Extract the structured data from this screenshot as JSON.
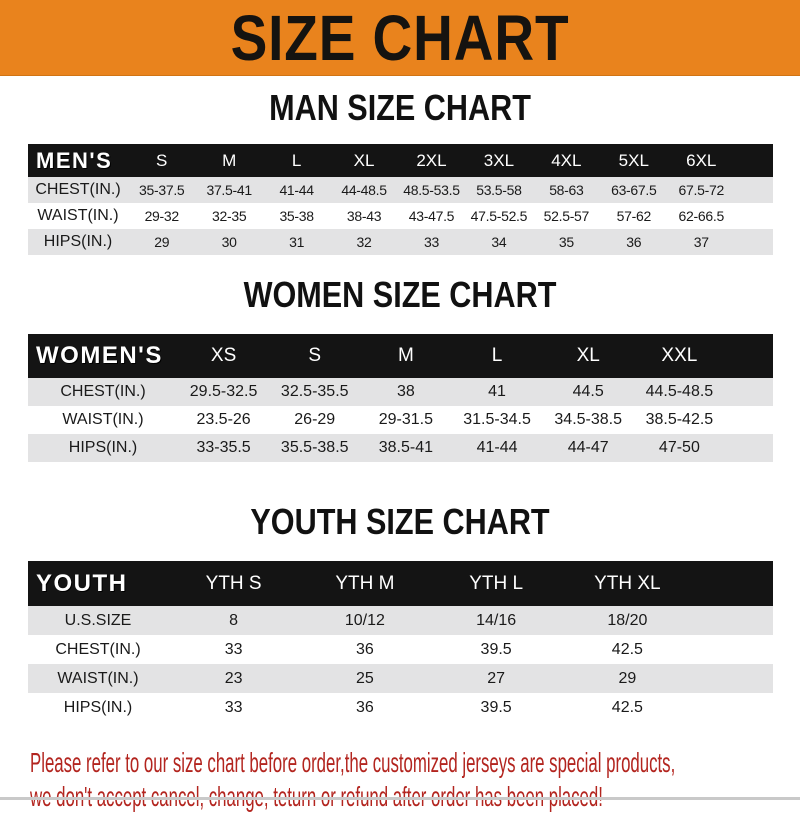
{
  "banner": {
    "title": "SIZE CHART"
  },
  "sections": [
    {
      "heading": "MAN SIZE CHART",
      "header_label": "MEN'S",
      "columns": [
        "S",
        "M",
        "L",
        "XL",
        "2XL",
        "3XL",
        "4XL",
        "5XL",
        "6XL"
      ],
      "rows": [
        {
          "label": "CHEST(IN.)",
          "values": [
            "35-37.5",
            "37.5-41",
            "41-44",
            "44-48.5",
            "48.5-53.5",
            "53.5-58",
            "58-63",
            "63-67.5",
            "67.5-72"
          ]
        },
        {
          "label": "WAIST(IN.)",
          "values": [
            "29-32",
            "32-35",
            "35-38",
            "38-43",
            "43-47.5",
            "47.5-52.5",
            "52.5-57",
            "57-62",
            "62-66.5"
          ]
        },
        {
          "label": "HIPS(IN.)",
          "values": [
            "29",
            "30",
            "31",
            "32",
            "33",
            "34",
            "35",
            "36",
            "37"
          ]
        }
      ]
    },
    {
      "heading": "WOMEN SIZE CHART",
      "header_label": "WOMEN'S",
      "columns": [
        "XS",
        "S",
        "M",
        "L",
        "XL",
        "XXL"
      ],
      "rows": [
        {
          "label": "CHEST(IN.)",
          "values": [
            "29.5-32.5",
            "32.5-35.5",
            "38",
            "41",
            "44.5",
            "44.5-48.5"
          ]
        },
        {
          "label": "WAIST(IN.)",
          "values": [
            "23.5-26",
            "26-29",
            "29-31.5",
            "31.5-34.5",
            "34.5-38.5",
            "38.5-42.5"
          ]
        },
        {
          "label": "HIPS(IN.)",
          "values": [
            "33-35.5",
            "35.5-38.5",
            "38.5-41",
            "41-44",
            "44-47",
            "47-50"
          ]
        }
      ]
    },
    {
      "heading": "YOUTH SIZE CHART",
      "header_label": "YOUTH",
      "columns": [
        "YTH S",
        "YTH M",
        "YTH L",
        "YTH XL"
      ],
      "rows": [
        {
          "label": "U.S.SIZE",
          "values": [
            "8",
            "10/12",
            "14/16",
            "18/20"
          ]
        },
        {
          "label": "CHEST(IN.)",
          "values": [
            "33",
            "36",
            "39.5",
            "42.5"
          ]
        },
        {
          "label": "WAIST(IN.)",
          "values": [
            "23",
            "25",
            "27",
            "29"
          ]
        },
        {
          "label": "HIPS(IN.)",
          "values": [
            "33",
            "36",
            "39.5",
            "42.5"
          ]
        }
      ]
    }
  ],
  "footer": {
    "line1": "Please refer to our size chart before order,the customized jerseys are special products,",
    "line2": "we don't accept cancel, change, teturn or refund after order has been placed!"
  },
  "colors": {
    "banner_bg": "#E9831D",
    "header_bar": "#141414",
    "row_gray": "#E3E3E4",
    "row_white": "#FFFFFF",
    "footer_red": "#B3251F"
  }
}
